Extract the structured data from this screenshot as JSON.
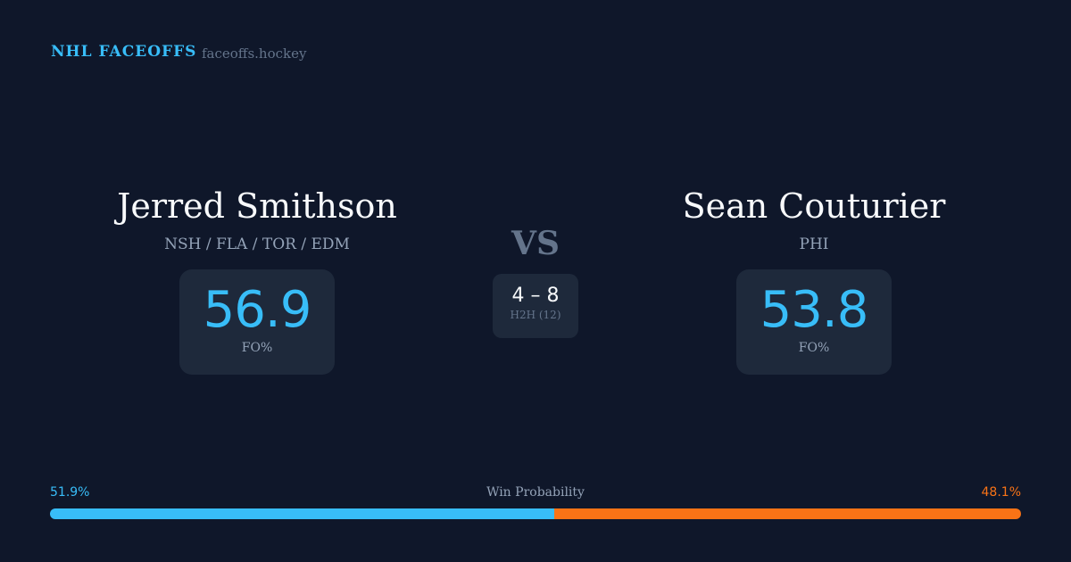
{
  "header": {
    "brand": "NHL FACEOFFS",
    "site": "faceoffs.hockey"
  },
  "left": {
    "name": "Jerred Smithson",
    "teams": "NSH / FLA / TOR / EDM",
    "fo_pct": "56.9",
    "fo_label": "FO%"
  },
  "right": {
    "name": "Sean Couturier",
    "teams": "PHI",
    "fo_pct": "53.8",
    "fo_label": "FO%"
  },
  "versus": {
    "label": "VS",
    "score": "4 – 8",
    "h2h_label": "H2H (12)"
  },
  "win_probability": {
    "label": "Win Probability",
    "left_label": "51.9%",
    "right_label": "48.1%",
    "left_value": 51.9,
    "right_value": 48.1,
    "left_color": "#38bdf8",
    "right_color": "#f97316"
  }
}
